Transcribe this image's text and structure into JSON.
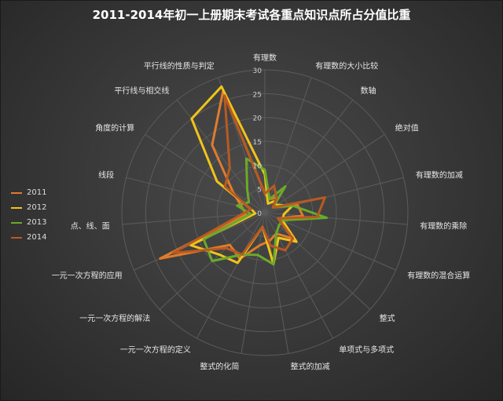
{
  "chart_data": {
    "type": "radar",
    "title": "2011-2014年初一上册期末考试各重点知识点所占分值比重",
    "categories": [
      "有理数",
      "有理数的大小比较",
      "数轴",
      "绝对值",
      "有理数的加减",
      "有理数的乘除",
      "有理数的混合运算",
      "整式",
      "单项式与多项式",
      "整式的加减",
      "整式的化简",
      "一元一次方程的定义",
      "一元一次方程的解法",
      "一元一次方程的应用",
      "点、线、面",
      "线段",
      "角度的计算",
      "平行线与相交线",
      "平行线的性质与判定"
    ],
    "radial_ticks": [
      0,
      5,
      10,
      15,
      20,
      25,
      30
    ],
    "rlim": [
      0,
      30
    ],
    "grid": true,
    "legend_position": "left",
    "series": [
      {
        "name": "2011",
        "color": "#e07b2c",
        "values": [
          4,
          3,
          4,
          2,
          7,
          8,
          3,
          8,
          5,
          6,
          7,
          11,
          10,
          24,
          4,
          5,
          8,
          18,
          27
        ]
      },
      {
        "name": "2012",
        "color": "#f0c419",
        "values": [
          8,
          2,
          3,
          3,
          6,
          4,
          4,
          9,
          6,
          11,
          3,
          12,
          13,
          17,
          2,
          3,
          12,
          25,
          28
        ]
      },
      {
        "name": "2013",
        "color": "#6aaa2a",
        "values": [
          9,
          3,
          7,
          2,
          6,
          13,
          4,
          4,
          5,
          11,
          9,
          10,
          15,
          14,
          3,
          6,
          4,
          6,
          12
        ]
      },
      {
        "name": "2014",
        "color": "#b85a22",
        "values": [
          4,
          6,
          4,
          2,
          13,
          11,
          3,
          8,
          9,
          7,
          3,
          10,
          11,
          21,
          5,
          3,
          10,
          12,
          26
        ]
      }
    ]
  }
}
